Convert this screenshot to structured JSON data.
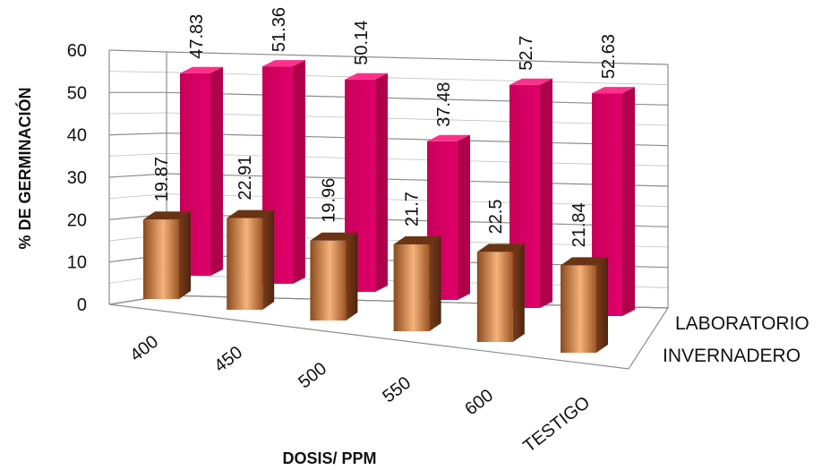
{
  "chart_data": {
    "type": "bar",
    "title": "",
    "xlabel": "DOSIS/ PPM",
    "ylabel": "% DE GERMINACIÓN",
    "ylim": [
      0,
      60
    ],
    "yticks": [
      "0",
      "10",
      "20",
      "30",
      "40",
      "50",
      "60"
    ],
    "categories": [
      "400",
      "450",
      "500",
      "550",
      "600",
      "TESTIGO"
    ],
    "grid": true,
    "legend": "depth-axis-right",
    "series": [
      {
        "name": "LABORATORIO",
        "values": [
          47.83,
          51.36,
          50.14,
          37.48,
          52.7,
          52.63
        ],
        "labels": [
          "47.83",
          "51.36",
          "50.14",
          "37.48",
          "52.7",
          "52.63"
        ],
        "color": "#d6005f"
      },
      {
        "name": "INVERNADERO",
        "values": [
          19.87,
          22.91,
          19.96,
          21.7,
          22.5,
          21.84
        ],
        "labels": [
          "19.87",
          "22.91",
          "19.96",
          "21.7",
          "22.5",
          "21.84"
        ],
        "color": "#d2793a"
      }
    ]
  }
}
